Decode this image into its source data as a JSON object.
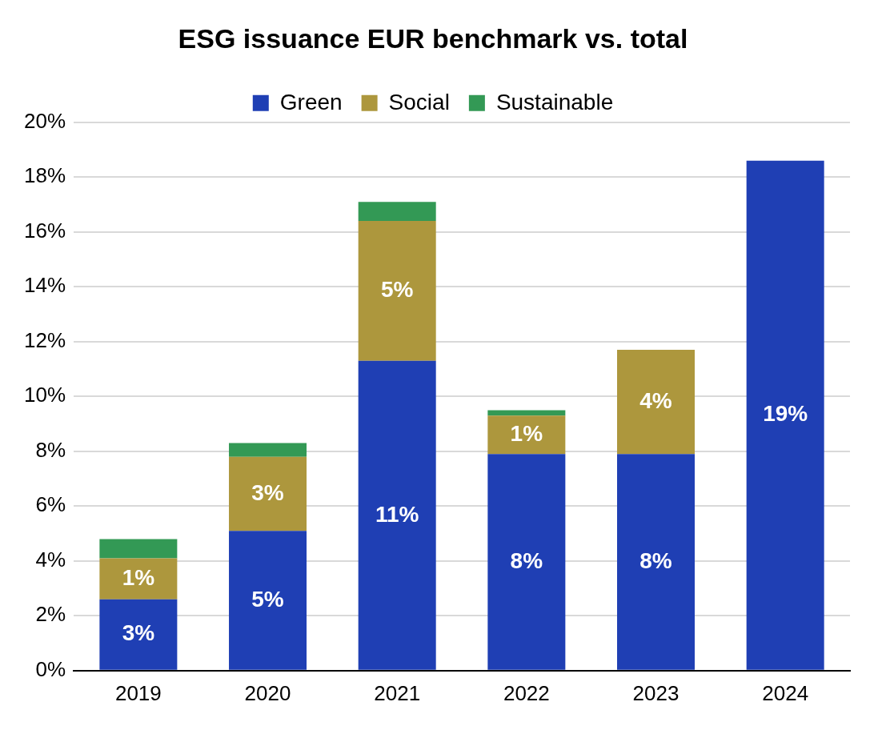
{
  "chart_data": {
    "type": "bar",
    "title": "ESG issuance EUR benchmark vs. total",
    "categories": [
      "2019",
      "2020",
      "2021",
      "2022",
      "2023",
      "2024"
    ],
    "stacked": true,
    "series": [
      {
        "name": "Green",
        "color": "#1f3fb4",
        "values": [
          2.6,
          5.1,
          11.3,
          7.9,
          7.9,
          18.6
        ],
        "value_labels": [
          "3%",
          "5%",
          "11%",
          "8%",
          "8%",
          "19%"
        ]
      },
      {
        "name": "Social",
        "color": "#ad973d",
        "values": [
          1.5,
          2.7,
          5.1,
          1.4,
          3.8,
          null
        ],
        "value_labels": [
          "1%",
          "3%",
          "5%",
          "1%",
          "4%",
          null
        ]
      },
      {
        "name": "Sustainable",
        "color": "#339955",
        "values": [
          0.7,
          0.5,
          0.7,
          0.2,
          null,
          null
        ]
      }
    ],
    "ylim": [
      0,
      20
    ],
    "yticks": [
      {
        "value": 0,
        "label": "0%"
      },
      {
        "value": 2,
        "label": "2%"
      },
      {
        "value": 4,
        "label": "4%"
      },
      {
        "value": 6,
        "label": "6%"
      },
      {
        "value": 8,
        "label": "8%"
      },
      {
        "value": 10,
        "label": "10%"
      },
      {
        "value": 12,
        "label": "12%"
      },
      {
        "value": 14,
        "label": "14%"
      },
      {
        "value": 16,
        "label": "16%"
      },
      {
        "value": 18,
        "label": "18%"
      },
      {
        "value": 20,
        "label": "20%"
      }
    ],
    "grid": "y",
    "legend": "top"
  }
}
